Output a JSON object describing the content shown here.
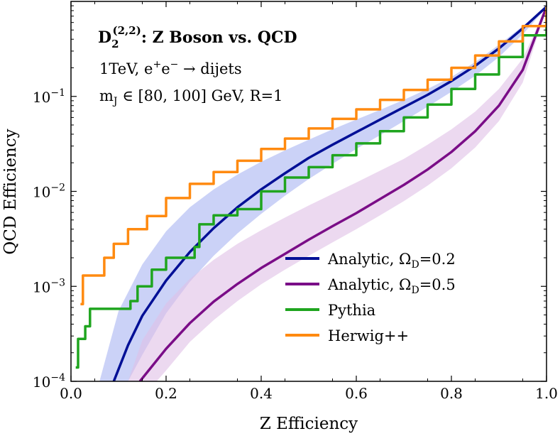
{
  "chart_data": {
    "type": "line",
    "xlabel": "Z Efficiency",
    "ylabel": "QCD Efficiency",
    "xlim": [
      0.0,
      1.0
    ],
    "ylim": [
      0.0001,
      1.0
    ],
    "yscale": "log",
    "grid": false,
    "legend_position": "bottom-right",
    "x_ticks": [
      {
        "value": 0.0,
        "label": "0.0"
      },
      {
        "value": 0.2,
        "label": "0.2"
      },
      {
        "value": 0.4,
        "label": "0.4"
      },
      {
        "value": 0.6,
        "label": "0.6"
      },
      {
        "value": 0.8,
        "label": "0.8"
      },
      {
        "value": 1.0,
        "label": "1.0"
      }
    ],
    "y_ticks": [
      {
        "value": 0.0001,
        "base": "10",
        "exp": "−4"
      },
      {
        "value": 0.001,
        "base": "10",
        "exp": "−3"
      },
      {
        "value": 0.01,
        "base": "10",
        "exp": "−2"
      },
      {
        "value": 0.1,
        "base": "10",
        "exp": "−1"
      }
    ],
    "annotations": {
      "title": {
        "main": "D",
        "sub": "2",
        "sup": "(2,2)",
        "rest": ":  Z Boson vs. QCD"
      },
      "line2": {
        "pre": "1TeV,  e",
        "sup1": "+",
        "mid": "e",
        "sup2": "−",
        "post": " → dijets"
      },
      "line3": {
        "pre": "m",
        "sub": "J",
        "post": " ∈ [80, 100] GeV,  R=1"
      }
    },
    "series": [
      {
        "name": "Analytic,  ΩD=0.2",
        "label_main": "Analytic,  Ω",
        "label_sub": "D",
        "label_post": "=0.2",
        "color": "#000f96",
        "band_color": "#a9b4f2",
        "x": [
          0.09,
          0.12,
          0.15,
          0.2,
          0.25,
          0.3,
          0.35,
          0.4,
          0.45,
          0.5,
          0.55,
          0.6,
          0.65,
          0.7,
          0.75,
          0.8,
          0.85,
          0.9,
          0.95,
          1.0
        ],
        "y": [
          0.0001,
          0.00024,
          0.00049,
          0.00115,
          0.0023,
          0.0041,
          0.0068,
          0.0105,
          0.0155,
          0.0225,
          0.031,
          0.042,
          0.057,
          0.077,
          0.104,
          0.145,
          0.21,
          0.32,
          0.52,
          0.88
        ],
        "band_x": [
          0.06,
          0.1,
          0.15,
          0.2,
          0.25,
          0.3,
          0.35,
          0.4,
          0.45,
          0.5,
          0.55,
          0.6,
          0.65,
          0.7,
          0.75,
          0.8,
          0.85,
          0.9,
          0.95,
          1.0
        ],
        "band_upper": [
          0.0001,
          0.00055,
          0.0017,
          0.0038,
          0.0068,
          0.0105,
          0.015,
          0.0205,
          0.027,
          0.035,
          0.045,
          0.057,
          0.072,
          0.092,
          0.12,
          0.16,
          0.23,
          0.35,
          0.55,
          0.9
        ],
        "band_lower_x": [
          0.12,
          0.15,
          0.2,
          0.25,
          0.3,
          0.35,
          0.4,
          0.45,
          0.5,
          0.55,
          0.6,
          0.65,
          0.7,
          0.75,
          0.8,
          0.85,
          0.9,
          0.95,
          1.0
        ],
        "band_lower": [
          0.0001,
          0.00019,
          0.00052,
          0.00112,
          0.0021,
          0.0036,
          0.0058,
          0.009,
          0.0135,
          0.0195,
          0.028,
          0.039,
          0.055,
          0.078,
          0.112,
          0.165,
          0.26,
          0.45,
          0.86
        ]
      },
      {
        "name": "Analytic,  ΩD=0.5",
        "label_main": "Analytic,  Ω",
        "label_sub": "D",
        "label_post": "=0.5",
        "color": "#7a0d87",
        "band_color": "#dfbfe6",
        "x": [
          0.145,
          0.2,
          0.25,
          0.3,
          0.35,
          0.4,
          0.45,
          0.5,
          0.55,
          0.6,
          0.65,
          0.7,
          0.75,
          0.8,
          0.85,
          0.9,
          0.95,
          1.0
        ],
        "y": [
          0.0001,
          0.00022,
          0.00041,
          0.00069,
          0.00106,
          0.00156,
          0.0022,
          0.0031,
          0.0043,
          0.0059,
          0.0083,
          0.0117,
          0.017,
          0.026,
          0.043,
          0.08,
          0.19,
          0.88
        ],
        "band_x": [
          0.12,
          0.15,
          0.2,
          0.25,
          0.3,
          0.35,
          0.4,
          0.45,
          0.5,
          0.55,
          0.6,
          0.65,
          0.7,
          0.75,
          0.8,
          0.85,
          0.9,
          0.95,
          1.0
        ],
        "band_upper": [
          0.0001,
          0.00027,
          0.00066,
          0.0012,
          0.0019,
          0.0028,
          0.0039,
          0.0053,
          0.0071,
          0.0094,
          0.0124,
          0.0165,
          0.022,
          0.031,
          0.045,
          0.069,
          0.12,
          0.25,
          0.88
        ],
        "band_lower_x": [
          0.18,
          0.2,
          0.25,
          0.3,
          0.35,
          0.4,
          0.45,
          0.5,
          0.55,
          0.6,
          0.65,
          0.7,
          0.75,
          0.8,
          0.85,
          0.9,
          0.95,
          1.0
        ],
        "band_lower": [
          0.0001,
          0.00013,
          0.00026,
          0.00044,
          0.0007,
          0.00105,
          0.0015,
          0.0021,
          0.0029,
          0.004,
          0.0056,
          0.0079,
          0.0115,
          0.0175,
          0.029,
          0.055,
          0.14,
          0.86
        ]
      },
      {
        "name": "Pythia",
        "color": "#1fa51f",
        "x": [
          0.01,
          0.015,
          0.02,
          0.03,
          0.04,
          0.08,
          0.12,
          0.125,
          0.14,
          0.17,
          0.2,
          0.25,
          0.26,
          0.27,
          0.3,
          0.35,
          0.4,
          0.45,
          0.5,
          0.55,
          0.6,
          0.65,
          0.7,
          0.75,
          0.8,
          0.85,
          0.9,
          0.95,
          1.0
        ],
        "y": [
          0.00014,
          0.00028,
          0.00028,
          0.00038,
          0.00058,
          0.00058,
          0.00058,
          0.0007,
          0.001,
          0.0015,
          0.002,
          0.002,
          0.0026,
          0.0045,
          0.0056,
          0.0065,
          0.01,
          0.014,
          0.018,
          0.024,
          0.032,
          0.043,
          0.06,
          0.082,
          0.12,
          0.17,
          0.26,
          0.44,
          0.88
        ],
        "stair": true
      },
      {
        "name": "Herwig++",
        "color": "#ff8a10",
        "x": [
          0.02,
          0.025,
          0.05,
          0.07,
          0.09,
          0.12,
          0.16,
          0.2,
          0.25,
          0.3,
          0.35,
          0.4,
          0.45,
          0.5,
          0.55,
          0.6,
          0.65,
          0.7,
          0.75,
          0.8,
          0.85,
          0.9,
          0.95,
          1.0
        ],
        "y": [
          0.00065,
          0.0013,
          0.0013,
          0.002,
          0.0028,
          0.004,
          0.0055,
          0.0085,
          0.012,
          0.016,
          0.021,
          0.028,
          0.036,
          0.046,
          0.058,
          0.073,
          0.092,
          0.117,
          0.15,
          0.2,
          0.27,
          0.38,
          0.55,
          0.88
        ],
        "stair": true
      }
    ]
  }
}
